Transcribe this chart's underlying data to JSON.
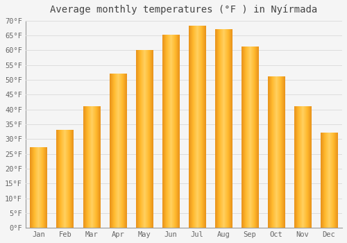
{
  "title": "Average monthly temperatures (°F ) in Nyírmada",
  "months": [
    "Jan",
    "Feb",
    "Mar",
    "Apr",
    "May",
    "Jun",
    "Jul",
    "Aug",
    "Sep",
    "Oct",
    "Nov",
    "Dec"
  ],
  "values": [
    27,
    33,
    41,
    52,
    60,
    65,
    68,
    67,
    61,
    51,
    41,
    32
  ],
  "bar_color": "#F5A623",
  "bar_edge_color": "#E8922A",
  "ylim": [
    0,
    70
  ],
  "yticks": [
    0,
    5,
    10,
    15,
    20,
    25,
    30,
    35,
    40,
    45,
    50,
    55,
    60,
    65,
    70
  ],
  "background_color": "#F5F5F5",
  "plot_bg_color": "#F5F5F5",
  "grid_color": "#DDDDDD",
  "title_fontsize": 10,
  "tick_fontsize": 7.5,
  "tick_color": "#666666",
  "title_color": "#444444",
  "font_family": "monospace",
  "bar_width": 0.65
}
